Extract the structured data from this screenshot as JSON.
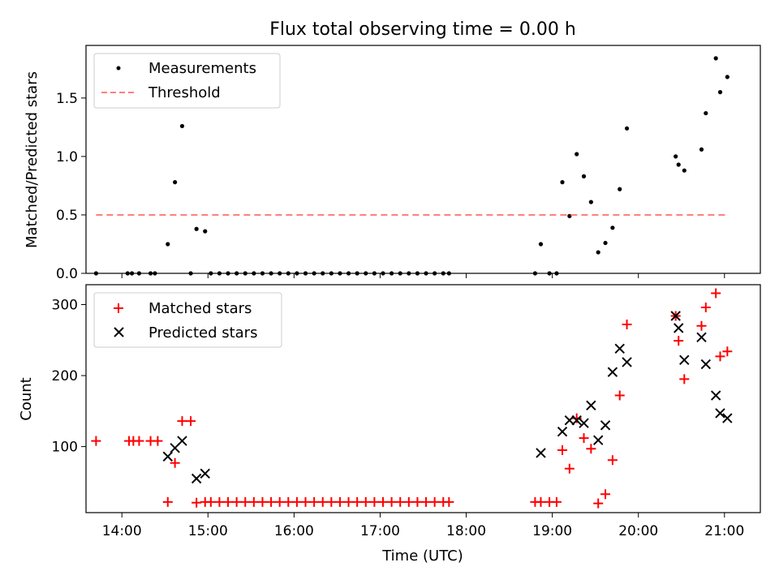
{
  "title": "Flux total observing time = 0.00 h",
  "chart_data": [
    {
      "type": "scatter",
      "ylabel": "Matched/Predicted stars",
      "xlabel": "",
      "xlim": [
        "13:35",
        "21:25"
      ],
      "ylim": [
        0,
        1.95
      ],
      "yticks": [
        "0.0",
        "0.5",
        "1.0",
        "1.5"
      ],
      "legend": "top-left",
      "series": [
        {
          "name": "Measurements",
          "marker": "dot",
          "color": "#000000",
          "points": [
            [
              "13:42",
              0.0
            ],
            [
              "14:04",
              0.0
            ],
            [
              "14:07",
              0.0
            ],
            [
              "14:12",
              0.0
            ],
            [
              "14:20",
              0.0
            ],
            [
              "14:23",
              0.0
            ],
            [
              "14:32",
              0.25
            ],
            [
              "14:37",
              0.78
            ],
            [
              "14:42",
              1.26
            ],
            [
              "14:48",
              0.0
            ],
            [
              "14:52",
              0.38
            ],
            [
              "14:58",
              0.36
            ],
            [
              "15:02",
              0.0
            ],
            [
              "15:08",
              0.0
            ],
            [
              "15:14",
              0.0
            ],
            [
              "15:20",
              0.0
            ],
            [
              "15:26",
              0.0
            ],
            [
              "15:32",
              0.0
            ],
            [
              "15:38",
              0.0
            ],
            [
              "15:44",
              0.0
            ],
            [
              "15:50",
              0.0
            ],
            [
              "15:56",
              0.0
            ],
            [
              "16:02",
              0.0
            ],
            [
              "16:08",
              0.0
            ],
            [
              "16:14",
              0.0
            ],
            [
              "16:20",
              0.0
            ],
            [
              "16:26",
              0.0
            ],
            [
              "16:32",
              0.0
            ],
            [
              "16:38",
              0.0
            ],
            [
              "16:44",
              0.0
            ],
            [
              "16:50",
              0.0
            ],
            [
              "16:56",
              0.0
            ],
            [
              "17:02",
              0.0
            ],
            [
              "17:08",
              0.0
            ],
            [
              "17:14",
              0.0
            ],
            [
              "17:20",
              0.0
            ],
            [
              "17:26",
              0.0
            ],
            [
              "17:32",
              0.0
            ],
            [
              "17:38",
              0.0
            ],
            [
              "17:44",
              0.0
            ],
            [
              "17:48",
              0.0
            ],
            [
              "18:48",
              0.0
            ],
            [
              "18:52",
              0.25
            ],
            [
              "18:58",
              0.0
            ],
            [
              "19:03",
              0.0
            ],
            [
              "19:07",
              0.78
            ],
            [
              "19:12",
              0.49
            ],
            [
              "19:17",
              1.02
            ],
            [
              "19:22",
              0.83
            ],
            [
              "19:27",
              0.61
            ],
            [
              "19:32",
              0.18
            ],
            [
              "19:37",
              0.26
            ],
            [
              "19:42",
              0.39
            ],
            [
              "19:47",
              0.72
            ],
            [
              "19:52",
              1.24
            ],
            [
              "20:26",
              1.0
            ],
            [
              "20:28",
              0.93
            ],
            [
              "20:32",
              0.88
            ],
            [
              "20:44",
              1.06
            ],
            [
              "20:47",
              1.37
            ],
            [
              "20:54",
              1.84
            ],
            [
              "20:57",
              1.55
            ],
            [
              "21:02",
              1.68
            ]
          ]
        },
        {
          "name": "Threshold",
          "style": "dashed",
          "color": "#ff7f7f",
          "points": [
            [
              "13:42",
              0.5
            ],
            [
              "21:02",
              0.5
            ]
          ]
        }
      ]
    },
    {
      "type": "scatter",
      "ylabel": "Count",
      "xlabel": "Time (UTC)",
      "xlim": [
        "13:35",
        "21:25"
      ],
      "ylim": [
        7,
        328
      ],
      "yticks": [
        "100",
        "200",
        "300"
      ],
      "xticks": [
        "14:00",
        "15:00",
        "16:00",
        "17:00",
        "18:00",
        "19:00",
        "20:00",
        "21:00"
      ],
      "legend": "top-left",
      "series": [
        {
          "name": "Matched stars",
          "marker": "plus",
          "color": "#ff0000",
          "points": [
            [
              "13:42",
              108
            ],
            [
              "14:05",
              108
            ],
            [
              "14:08",
              108
            ],
            [
              "14:12",
              108
            ],
            [
              "14:20",
              108
            ],
            [
              "14:25",
              108
            ],
            [
              "14:32",
              22
            ],
            [
              "14:37",
              77
            ],
            [
              "14:42",
              136
            ],
            [
              "14:48",
              136
            ],
            [
              "14:52",
              21
            ],
            [
              "14:58",
              22
            ],
            [
              "15:02",
              22
            ],
            [
              "15:08",
              22
            ],
            [
              "15:14",
              22
            ],
            [
              "15:20",
              22
            ],
            [
              "15:26",
              22
            ],
            [
              "15:32",
              22
            ],
            [
              "15:38",
              22
            ],
            [
              "15:44",
              22
            ],
            [
              "15:50",
              22
            ],
            [
              "15:56",
              22
            ],
            [
              "16:02",
              22
            ],
            [
              "16:08",
              22
            ],
            [
              "16:14",
              22
            ],
            [
              "16:20",
              22
            ],
            [
              "16:26",
              22
            ],
            [
              "16:32",
              22
            ],
            [
              "16:38",
              22
            ],
            [
              "16:44",
              22
            ],
            [
              "16:50",
              22
            ],
            [
              "16:56",
              22
            ],
            [
              "17:02",
              22
            ],
            [
              "17:08",
              22
            ],
            [
              "17:14",
              22
            ],
            [
              "17:20",
              22
            ],
            [
              "17:26",
              22
            ],
            [
              "17:32",
              22
            ],
            [
              "17:38",
              22
            ],
            [
              "17:44",
              22
            ],
            [
              "17:48",
              22
            ],
            [
              "18:48",
              22
            ],
            [
              "18:52",
              22
            ],
            [
              "18:58",
              22
            ],
            [
              "19:03",
              22
            ],
            [
              "19:07",
              95
            ],
            [
              "19:12",
              69
            ],
            [
              "19:17",
              140
            ],
            [
              "19:22",
              112
            ],
            [
              "19:27",
              97
            ],
            [
              "19:32",
              20
            ],
            [
              "19:37",
              33
            ],
            [
              "19:42",
              81
            ],
            [
              "19:47",
              172
            ],
            [
              "19:52",
              272
            ],
            [
              "20:26",
              284
            ],
            [
              "20:28",
              249
            ],
            [
              "20:32",
              195
            ],
            [
              "20:44",
              270
            ],
            [
              "20:47",
              296
            ],
            [
              "20:54",
              316
            ],
            [
              "20:57",
              227
            ],
            [
              "21:02",
              234
            ]
          ]
        },
        {
          "name": "Predicted stars",
          "marker": "x",
          "color": "#000000",
          "points": [
            [
              "14:32",
              86
            ],
            [
              "14:37",
              98
            ],
            [
              "14:42",
              108
            ],
            [
              "14:52",
              55
            ],
            [
              "14:58",
              62
            ],
            [
              "18:52",
              91
            ],
            [
              "19:07",
              121
            ],
            [
              "19:12",
              137
            ],
            [
              "19:17",
              137
            ],
            [
              "19:22",
              133
            ],
            [
              "19:27",
              158
            ],
            [
              "19:32",
              109
            ],
            [
              "19:37",
              130
            ],
            [
              "19:42",
              205
            ],
            [
              "19:47",
              238
            ],
            [
              "19:52",
              219
            ],
            [
              "20:26",
              284
            ],
            [
              "20:28",
              267
            ],
            [
              "20:32",
              222
            ],
            [
              "20:44",
              254
            ],
            [
              "20:47",
              216
            ],
            [
              "20:54",
              172
            ],
            [
              "20:57",
              147
            ],
            [
              "21:02",
              140
            ]
          ]
        }
      ]
    }
  ]
}
